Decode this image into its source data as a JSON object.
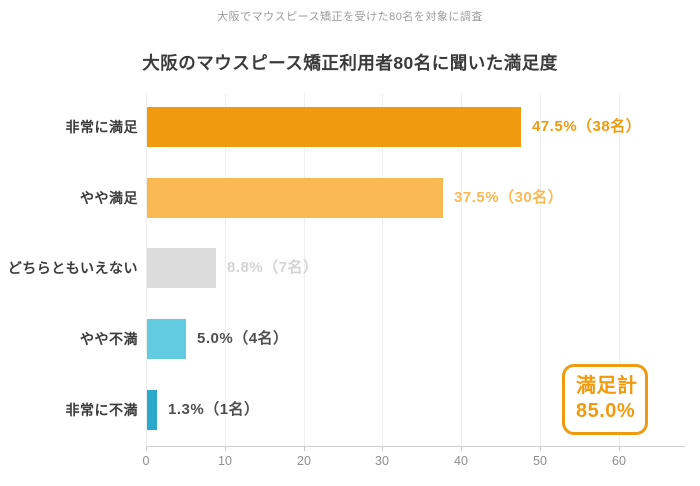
{
  "header": {
    "subtitle": "大阪でマウスピース矯正を受けた80名を対象に調査",
    "title": "大阪のマウスピース矯正利用者80名に聞いた満足度"
  },
  "chart_data": {
    "type": "bar",
    "orientation": "horizontal",
    "title": "大阪のマウスピース矯正利用者80名に聞いた満足度",
    "subtitle": "大阪でマウスピース矯正を受けた80名を対象に調査",
    "categories": [
      "非常に満足",
      "やや満足",
      "どちらともいえない",
      "やや不満",
      "非常に不満"
    ],
    "values": [
      47.5,
      37.5,
      8.8,
      5.0,
      1.3
    ],
    "counts": [
      38,
      30,
      7,
      4,
      1
    ],
    "value_labels": [
      "47.5%（38名）",
      "37.5%（30名）",
      "8.8%（7名）",
      "5.0%（4名）",
      "1.3%（1名）"
    ],
    "bar_colors": [
      "#f09a10",
      "#fbb954",
      "#dcdcdc",
      "#63cbe0",
      "#2ba9cd"
    ],
    "value_label_colors": [
      "#f09a10",
      "#fbb954",
      "#d4d4d4",
      "#4f4f4f",
      "#4f4f4f"
    ],
    "xlabel": "",
    "ylabel": "",
    "xlim": [
      0,
      68.4
    ],
    "x_ticks": [
      0,
      10,
      20,
      30,
      40,
      50,
      60
    ],
    "grid": true,
    "legend": false,
    "annotation": {
      "line1": "満足計",
      "line2": "85.0%",
      "color": "#f09a10"
    }
  }
}
